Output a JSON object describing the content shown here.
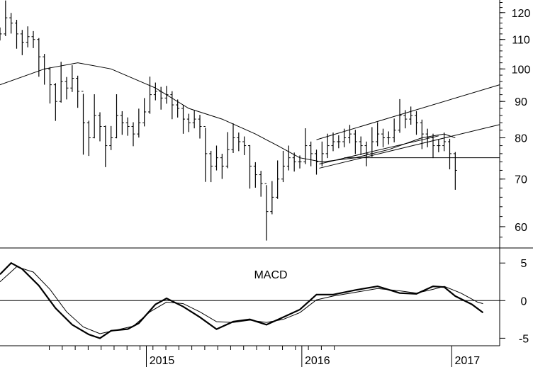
{
  "chart_data": [
    {
      "type": "ohlc",
      "title": "",
      "xlabel": "",
      "ylabel": "",
      "x_ticks": [
        "2015",
        "2016",
        "2017"
      ],
      "y_scale": "log",
      "y_ticks": [
        120,
        110,
        100,
        90,
        80,
        70,
        60
      ],
      "ylim": [
        56,
        125
      ],
      "x_range": [
        "2014-05",
        "2017-06"
      ],
      "grid": false,
      "price_series": [
        {
          "t": 0,
          "v": 112
        },
        {
          "t": 1,
          "v": 118
        },
        {
          "t": 2,
          "v": 116
        },
        {
          "t": 3,
          "v": 112
        },
        {
          "t": 4,
          "v": 109
        },
        {
          "t": 5,
          "v": 111
        },
        {
          "t": 6,
          "v": 110
        },
        {
          "t": 7,
          "v": 104
        },
        {
          "t": 8,
          "v": 100
        },
        {
          "t": 9,
          "v": 95
        },
        {
          "t": 10,
          "v": 90
        },
        {
          "t": 11,
          "v": 96
        },
        {
          "t": 12,
          "v": 94
        },
        {
          "t": 13,
          "v": 97
        },
        {
          "t": 14,
          "v": 93
        },
        {
          "t": 15,
          "v": 84
        },
        {
          "t": 16,
          "v": 80
        },
        {
          "t": 17,
          "v": 86
        },
        {
          "t": 18,
          "v": 83
        },
        {
          "t": 19,
          "v": 78
        },
        {
          "t": 20,
          "v": 80
        },
        {
          "t": 21,
          "v": 86
        },
        {
          "t": 22,
          "v": 84
        },
        {
          "t": 23,
          "v": 83
        },
        {
          "t": 24,
          "v": 81
        },
        {
          "t": 25,
          "v": 84
        },
        {
          "t": 26,
          "v": 87
        },
        {
          "t": 27,
          "v": 92
        },
        {
          "t": 28,
          "v": 93
        },
        {
          "t": 29,
          "v": 91
        },
        {
          "t": 30,
          "v": 92
        },
        {
          "t": 31,
          "v": 89
        },
        {
          "t": 32,
          "v": 88
        },
        {
          "t": 33,
          "v": 85
        },
        {
          "t": 34,
          "v": 84
        },
        {
          "t": 35,
          "v": 85
        },
        {
          "t": 36,
          "v": 83
        },
        {
          "t": 37,
          "v": 76
        },
        {
          "t": 38,
          "v": 73
        },
        {
          "t": 39,
          "v": 75
        },
        {
          "t": 40,
          "v": 73
        },
        {
          "t": 41,
          "v": 77
        },
        {
          "t": 42,
          "v": 80
        },
        {
          "t": 43,
          "v": 79
        },
        {
          "t": 44,
          "v": 78
        },
        {
          "t": 45,
          "v": 73
        },
        {
          "t": 46,
          "v": 71
        },
        {
          "t": 47,
          "v": 69
        },
        {
          "t": 48,
          "v": 63
        },
        {
          "t": 49,
          "v": 66
        },
        {
          "t": 50,
          "v": 70
        },
        {
          "t": 51,
          "v": 73
        },
        {
          "t": 52,
          "v": 75
        },
        {
          "t": 53,
          "v": 74
        },
        {
          "t": 54,
          "v": 74
        },
        {
          "t": 55,
          "v": 78
        },
        {
          "t": 56,
          "v": 76
        },
        {
          "t": 57,
          "v": 74
        },
        {
          "t": 58,
          "v": 76
        },
        {
          "t": 59,
          "v": 78
        },
        {
          "t": 60,
          "v": 79
        },
        {
          "t": 61,
          "v": 79
        },
        {
          "t": 62,
          "v": 80
        },
        {
          "t": 63,
          "v": 81
        },
        {
          "t": 64,
          "v": 79
        },
        {
          "t": 65,
          "v": 78
        },
        {
          "t": 66,
          "v": 76
        },
        {
          "t": 67,
          "v": 79
        },
        {
          "t": 68,
          "v": 81
        },
        {
          "t": 69,
          "v": 80
        },
        {
          "t": 70,
          "v": 80
        },
        {
          "t": 71,
          "v": 82
        },
        {
          "t": 72,
          "v": 86
        },
        {
          "t": 73,
          "v": 85
        },
        {
          "t": 74,
          "v": 86
        },
        {
          "t": 75,
          "v": 84
        },
        {
          "t": 76,
          "v": 81
        },
        {
          "t": 77,
          "v": 80
        },
        {
          "t": 78,
          "v": 78
        },
        {
          "t": 79,
          "v": 78
        },
        {
          "t": 80,
          "v": 79
        },
        {
          "t": 81,
          "v": 76
        },
        {
          "t": 82,
          "v": 72
        }
      ],
      "moving_average": [
        {
          "t": 0,
          "v": 95
        },
        {
          "t": 8,
          "v": 100
        },
        {
          "t": 14,
          "v": 102
        },
        {
          "t": 20,
          "v": 100
        },
        {
          "t": 28,
          "v": 94
        },
        {
          "t": 34,
          "v": 88
        },
        {
          "t": 40,
          "v": 85
        },
        {
          "t": 46,
          "v": 81
        },
        {
          "t": 50,
          "v": 78
        },
        {
          "t": 54,
          "v": 75
        },
        {
          "t": 58,
          "v": 74
        },
        {
          "t": 64,
          "v": 75
        },
        {
          "t": 70,
          "v": 77
        },
        {
          "t": 76,
          "v": 80
        },
        {
          "t": 80,
          "v": 81
        },
        {
          "t": 82,
          "v": 80
        }
      ],
      "trendlines": [
        {
          "from": {
            "t": 57,
            "v": 79.5
          },
          "to": {
            "t": 90,
            "v": 95
          }
        },
        {
          "from": {
            "t": 57.5,
            "v": 72.5
          },
          "to": {
            "t": 90,
            "v": 83.5
          }
        },
        {
          "from": {
            "t": 57.5,
            "v": 73.5
          },
          "to": {
            "t": 79,
            "v": 80.5
          }
        },
        {
          "from": {
            "t": 62,
            "v": 75
          },
          "to": {
            "t": 90,
            "v": 75
          }
        }
      ]
    },
    {
      "type": "line",
      "title": "MACD",
      "y_ticks": [
        5,
        0,
        -5
      ],
      "ylim": [
        -6,
        7
      ],
      "zero_line": true,
      "x_ticks": [
        "2015",
        "2016",
        "2017"
      ],
      "series": [
        {
          "values": [
            {
              "t": 0,
              "v": 3.5
            },
            {
              "t": 2,
              "v": 5
            },
            {
              "t": 4,
              "v": 4.2
            },
            {
              "t": 7,
              "v": 2
            },
            {
              "t": 10,
              "v": -1
            },
            {
              "t": 13,
              "v": -3.2
            },
            {
              "t": 16,
              "v": -4.5
            },
            {
              "t": 18,
              "v": -5
            },
            {
              "t": 20,
              "v": -4
            },
            {
              "t": 23,
              "v": -3.8
            },
            {
              "t": 25,
              "v": -3
            },
            {
              "t": 28,
              "v": -0.5
            },
            {
              "t": 30,
              "v": 0.3
            },
            {
              "t": 33,
              "v": -0.8
            },
            {
              "t": 36,
              "v": -2.2
            },
            {
              "t": 39,
              "v": -3.8
            },
            {
              "t": 42,
              "v": -2.8
            },
            {
              "t": 45,
              "v": -2.5
            },
            {
              "t": 48,
              "v": -3.2
            },
            {
              "t": 51,
              "v": -2.2
            },
            {
              "t": 54,
              "v": -1.2
            },
            {
              "t": 57,
              "v": 0.8
            },
            {
              "t": 60,
              "v": 0.8
            },
            {
              "t": 64,
              "v": 1.4
            },
            {
              "t": 68,
              "v": 1.9
            },
            {
              "t": 72,
              "v": 1.0
            },
            {
              "t": 75,
              "v": 0.9
            },
            {
              "t": 78,
              "v": 1.9
            },
            {
              "t": 80,
              "v": 1.8
            },
            {
              "t": 82,
              "v": 0.6
            },
            {
              "t": 85,
              "v": -0.5
            },
            {
              "t": 87,
              "v": -1.6
            }
          ]
        },
        {
          "values": [
            {
              "t": 0,
              "v": 2.5
            },
            {
              "t": 3,
              "v": 4.5
            },
            {
              "t": 6,
              "v": 3.8
            },
            {
              "t": 9,
              "v": 1.5
            },
            {
              "t": 12,
              "v": -1.5
            },
            {
              "t": 15,
              "v": -3.5
            },
            {
              "t": 18,
              "v": -4.4
            },
            {
              "t": 21,
              "v": -3.9
            },
            {
              "t": 24,
              "v": -3.4
            },
            {
              "t": 27,
              "v": -1.5
            },
            {
              "t": 30,
              "v": -0.2
            },
            {
              "t": 33,
              "v": -0.4
            },
            {
              "t": 36,
              "v": -1.5
            },
            {
              "t": 39,
              "v": -2.8
            },
            {
              "t": 42,
              "v": -2.9
            },
            {
              "t": 45,
              "v": -2.6
            },
            {
              "t": 48,
              "v": -2.9
            },
            {
              "t": 51,
              "v": -2.5
            },
            {
              "t": 54,
              "v": -1.6
            },
            {
              "t": 57,
              "v": 0.1
            },
            {
              "t": 60,
              "v": 0.6
            },
            {
              "t": 64,
              "v": 1.1
            },
            {
              "t": 68,
              "v": 1.6
            },
            {
              "t": 72,
              "v": 1.3
            },
            {
              "t": 75,
              "v": 1.0
            },
            {
              "t": 78,
              "v": 1.5
            },
            {
              "t": 80,
              "v": 1.9
            },
            {
              "t": 83,
              "v": 1.0
            },
            {
              "t": 86,
              "v": -0.2
            },
            {
              "t": 87,
              "v": -0.4
            }
          ]
        }
      ]
    }
  ],
  "styles": {
    "line_color": "#000000",
    "background": "#ffffff"
  }
}
